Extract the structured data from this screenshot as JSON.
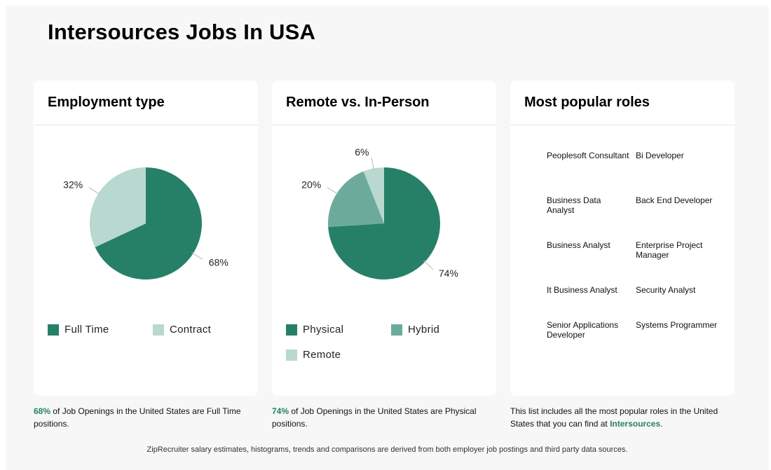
{
  "page": {
    "title": "Intersources Jobs In USA"
  },
  "colors": {
    "primary": "#268068",
    "secondary": "#6cab9b",
    "light": "#b9d8cf"
  },
  "cards": {
    "employment": {
      "title": "Employment type"
    },
    "remote": {
      "title": "Remote vs. In-Person"
    },
    "roles": {
      "title": "Most popular roles"
    }
  },
  "chart_data": [
    {
      "type": "pie",
      "title": "Employment type",
      "labels": [
        "Full Time",
        "Contract"
      ],
      "values": [
        68,
        32
      ],
      "value_labels": [
        "68%",
        "32%"
      ],
      "colors": [
        "#268068",
        "#b9d8cf"
      ],
      "legend": [
        "Full Time",
        "Contract"
      ]
    },
    {
      "type": "pie",
      "title": "Remote vs. In-Person",
      "labels": [
        "Physical",
        "Hybrid",
        "Remote"
      ],
      "values": [
        74,
        20,
        6
      ],
      "value_labels": [
        "74%",
        "20%",
        "6%"
      ],
      "colors": [
        "#268068",
        "#6cab9b",
        "#b9d8cf"
      ],
      "legend": [
        "Physical",
        "Hybrid",
        "Remote"
      ]
    }
  ],
  "roles": [
    "Peoplesoft Consultant",
    "Bi Developer",
    "Business Data Analyst",
    "Back End Developer",
    "Business Analyst",
    "Enterprise Project Manager",
    "It Business Analyst",
    "Security Analyst",
    "Senior Applications Developer",
    "Systems Programmer"
  ],
  "captions": {
    "employment": {
      "pct": "68%",
      "rest": " of Job Openings in the United States are Full Time positions."
    },
    "remote": {
      "pct": "74%",
      "rest": " of Job Openings in the United States are Physical positions."
    },
    "roles": {
      "before": "This list includes all the most popular roles in the United States that you can find at ",
      "company": "Intersources",
      "after": "."
    }
  },
  "footer": "ZipRecruiter salary estimates, histograms, trends and comparisons are derived from both employer job postings and third party data sources."
}
